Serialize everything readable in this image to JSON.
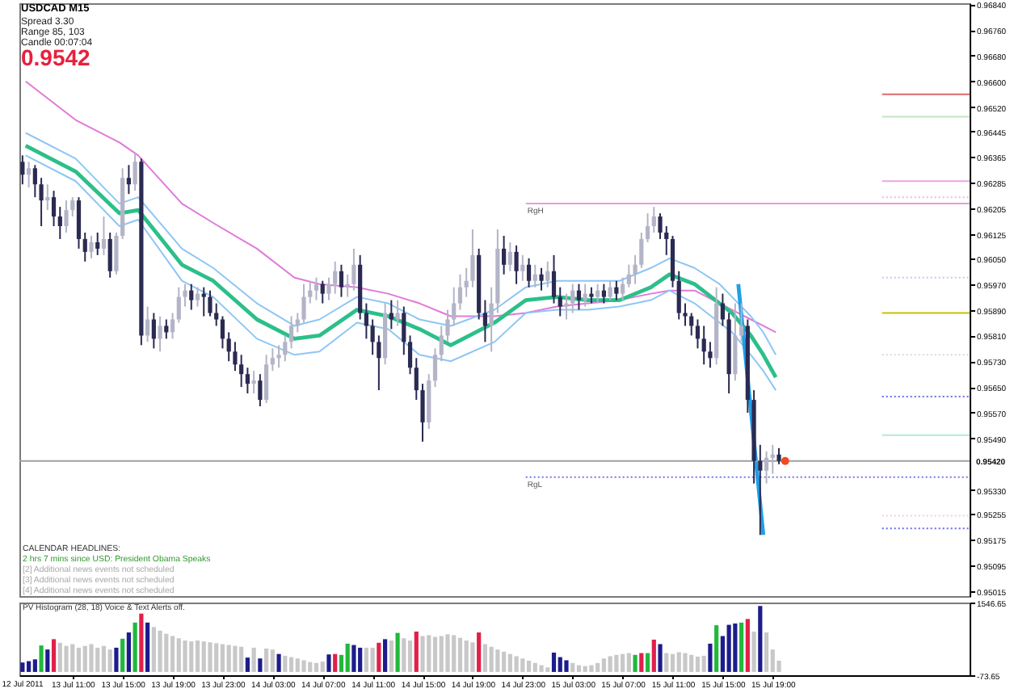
{
  "chart_data": [
    {
      "type": "candlestick",
      "tick_labels": "y",
      "x": [
        "2011-07-13T07:00",
        "2011-07-13T07:30",
        "2011-07-13T08:00",
        "2011-07-13T08:30",
        "2011-07-13T09:00",
        "2011-07-13T09:30",
        "2011-07-13T10:00",
        "2011-07-13T10:30",
        "2011-07-13T11:00",
        "2011-07-13T11:30",
        "2011-07-13T12:00",
        "2011-07-13T12:30",
        "2011-07-13T13:00",
        "2011-07-13T13:30",
        "2011-07-13T14:00",
        "2011-07-13T14:30",
        "2011-07-13T15:00",
        "2011-07-13T15:30",
        "2011-07-13T16:00",
        "2011-07-13T16:30",
        "2011-07-13T17:00",
        "2011-07-13T17:30",
        "2011-07-13T18:00",
        "2011-07-13T18:30",
        "2011-07-13T19:00",
        "2011-07-13T19:30",
        "2011-07-13T20:00",
        "2011-07-13T20:30",
        "2011-07-13T21:00",
        "2011-07-13T21:30",
        "2011-07-13T22:00",
        "2011-07-13T22:30",
        "2011-07-13T23:00",
        "2011-07-13T23:30",
        "2011-07-14T00:00",
        "2011-07-14T00:30",
        "2011-07-14T01:00",
        "2011-07-14T01:30",
        "2011-07-14T02:00",
        "2011-07-14T02:30",
        "2011-07-14T03:00",
        "2011-07-14T03:30",
        "2011-07-14T04:00",
        "2011-07-14T04:30",
        "2011-07-14T05:00",
        "2011-07-14T05:30",
        "2011-07-14T06:00",
        "2011-07-14T06:30",
        "2011-07-14T07:00",
        "2011-07-14T07:30",
        "2011-07-14T08:00",
        "2011-07-14T08:30",
        "2011-07-14T09:00",
        "2011-07-14T09:30",
        "2011-07-14T10:00",
        "2011-07-14T10:30",
        "2011-07-14T11:00",
        "2011-07-14T11:30",
        "2011-07-14T12:00",
        "2011-07-14T12:30",
        "2011-07-14T13:00",
        "2011-07-14T13:30",
        "2011-07-14T14:00",
        "2011-07-14T14:30",
        "2011-07-14T15:00",
        "2011-07-14T15:30",
        "2011-07-14T16:00",
        "2011-07-14T16:30",
        "2011-07-14T17:00",
        "2011-07-14T17:30",
        "2011-07-14T18:00",
        "2011-07-14T18:30",
        "2011-07-14T19:00",
        "2011-07-14T19:30",
        "2011-07-14T20:00",
        "2011-07-14T20:30",
        "2011-07-14T21:00",
        "2011-07-14T21:30",
        "2011-07-14T22:00",
        "2011-07-14T22:30",
        "2011-07-14T23:00",
        "2011-07-14T23:30",
        "2011-07-15T00:00",
        "2011-07-15T00:30",
        "2011-07-15T01:00",
        "2011-07-15T01:30",
        "2011-07-15T02:00",
        "2011-07-15T02:30",
        "2011-07-15T03:00",
        "2011-07-15T03:30",
        "2011-07-15T04:00",
        "2011-07-15T04:30",
        "2011-07-15T05:00",
        "2011-07-15T05:30",
        "2011-07-15T06:00",
        "2011-07-15T06:30",
        "2011-07-15T07:00",
        "2011-07-15T07:30",
        "2011-07-15T08:00",
        "2011-07-15T08:30",
        "2011-07-15T09:00",
        "2011-07-15T09:30",
        "2011-07-15T10:00",
        "2011-07-15T10:30",
        "2011-07-15T11:00",
        "2011-07-15T11:30",
        "2011-07-15T12:00",
        "2011-07-15T12:30",
        "2011-07-15T13:00",
        "2011-07-15T13:30",
        "2011-07-15T14:00",
        "2011-07-15T14:30",
        "2011-07-15T15:00",
        "2011-07-15T15:30",
        "2011-07-15T16:00",
        "2011-07-15T16:30",
        "2011-07-15T17:00",
        "2011-07-15T17:30",
        "2011-07-15T18:00",
        "2011-07-15T18:30",
        "2011-07-15T19:00",
        "2011-07-15T19:30"
      ],
      "ohlc": [
        [
          0.9635,
          0.9637,
          0.9628,
          0.9631
        ],
        [
          0.9631,
          0.9635,
          0.9627,
          0.9633
        ],
        [
          0.9633,
          0.9634,
          0.9624,
          0.9628
        ],
        [
          0.9628,
          0.963,
          0.9615,
          0.9623
        ],
        [
          0.9623,
          0.9628,
          0.962,
          0.9624
        ],
        [
          0.9624,
          0.9626,
          0.9615,
          0.9618
        ],
        [
          0.9618,
          0.9621,
          0.9611,
          0.9615
        ],
        [
          0.9615,
          0.9623,
          0.9613,
          0.962
        ],
        [
          0.962,
          0.9624,
          0.9618,
          0.9623
        ],
        [
          0.9623,
          0.9624,
          0.9608,
          0.9611
        ],
        [
          0.9611,
          0.9613,
          0.9604,
          0.9607
        ],
        [
          0.9607,
          0.9612,
          0.9605,
          0.961
        ],
        [
          0.961,
          0.9613,
          0.9606,
          0.9608
        ],
        [
          0.9608,
          0.9618,
          0.9606,
          0.9611
        ],
        [
          0.9611,
          0.9613,
          0.9599,
          0.9601
        ],
        [
          0.9601,
          0.9613,
          0.96,
          0.9612
        ],
        [
          0.9612,
          0.9633,
          0.9611,
          0.963
        ],
        [
          0.963,
          0.9634,
          0.9625,
          0.9628
        ],
        [
          0.9628,
          0.9638,
          0.9626,
          0.9635
        ],
        [
          0.9635,
          0.9636,
          0.9578,
          0.9581
        ],
        [
          0.9581,
          0.959,
          0.9579,
          0.9586
        ],
        [
          0.9586,
          0.9588,
          0.9577,
          0.958
        ],
        [
          0.958,
          0.9587,
          0.9576,
          0.9584
        ],
        [
          0.9584,
          0.9586,
          0.958,
          0.9582
        ],
        [
          0.9582,
          0.9588,
          0.958,
          0.9586
        ],
        [
          0.9586,
          0.9596,
          0.9585,
          0.9593
        ],
        [
          0.9593,
          0.9597,
          0.959,
          0.9595
        ],
        [
          0.9595,
          0.9597,
          0.9589,
          0.9592
        ],
        [
          0.9592,
          0.9596,
          0.959,
          0.9594
        ],
        [
          0.9594,
          0.9596,
          0.9587,
          0.9593
        ],
        [
          0.9593,
          0.9595,
          0.9587,
          0.9588
        ],
        [
          0.9588,
          0.9591,
          0.9584,
          0.9586
        ],
        [
          0.9586,
          0.9587,
          0.9577,
          0.958
        ],
        [
          0.958,
          0.9582,
          0.9573,
          0.9576
        ],
        [
          0.9576,
          0.9579,
          0.957,
          0.9572
        ],
        [
          0.9572,
          0.9575,
          0.9565,
          0.9569
        ],
        [
          0.9569,
          0.9571,
          0.9563,
          0.9566
        ],
        [
          0.9566,
          0.957,
          0.9563,
          0.9567
        ],
        [
          0.9567,
          0.9569,
          0.9559,
          0.9561
        ],
        [
          0.9561,
          0.9575,
          0.956,
          0.9572
        ],
        [
          0.9572,
          0.9577,
          0.957,
          0.9574
        ],
        [
          0.9574,
          0.9578,
          0.9571,
          0.9575
        ],
        [
          0.9575,
          0.9581,
          0.9573,
          0.9579
        ],
        [
          0.9579,
          0.9587,
          0.9577,
          0.9584
        ],
        [
          0.9584,
          0.9588,
          0.9582,
          0.9586
        ],
        [
          0.9586,
          0.9597,
          0.9585,
          0.9593
        ],
        [
          0.9593,
          0.9598,
          0.9591,
          0.9595
        ],
        [
          0.9595,
          0.9599,
          0.9592,
          0.9597
        ],
        [
          0.9597,
          0.9598,
          0.9591,
          0.9594
        ],
        [
          0.9594,
          0.9599,
          0.9592,
          0.9597
        ],
        [
          0.9597,
          0.9604,
          0.9594,
          0.9601
        ],
        [
          0.9601,
          0.9603,
          0.9593,
          0.9596
        ],
        [
          0.9596,
          0.96,
          0.9593,
          0.9597
        ],
        [
          0.9597,
          0.9608,
          0.9595,
          0.9603
        ],
        [
          0.9603,
          0.9606,
          0.9586,
          0.9588
        ],
        [
          0.9588,
          0.9591,
          0.958,
          0.9584
        ],
        [
          0.9584,
          0.9586,
          0.9575,
          0.9579
        ],
        [
          0.9579,
          0.9581,
          0.9564,
          0.9574
        ],
        [
          0.9574,
          0.9591,
          0.9572,
          0.9588
        ],
        [
          0.9588,
          0.9592,
          0.9583,
          0.9586
        ],
        [
          0.9586,
          0.9592,
          0.9584,
          0.9588
        ],
        [
          0.9588,
          0.959,
          0.9575,
          0.9579
        ],
        [
          0.9579,
          0.9581,
          0.9569,
          0.9571
        ],
        [
          0.9571,
          0.9574,
          0.9561,
          0.9564
        ],
        [
          0.9564,
          0.9566,
          0.9548,
          0.9554
        ],
        [
          0.9554,
          0.9569,
          0.9552,
          0.9567
        ],
        [
          0.9567,
          0.9577,
          0.9565,
          0.9575
        ],
        [
          0.9575,
          0.9584,
          0.9573,
          0.9581
        ],
        [
          0.9581,
          0.9589,
          0.9579,
          0.9586
        ],
        [
          0.9586,
          0.9596,
          0.9584,
          0.9591
        ],
        [
          0.9591,
          0.96,
          0.9589,
          0.9596
        ],
        [
          0.9596,
          0.9602,
          0.9593,
          0.9598
        ],
        [
          0.9598,
          0.9614,
          0.9596,
          0.9606
        ],
        [
          0.9606,
          0.9608,
          0.9586,
          0.9588
        ],
        [
          0.9588,
          0.9592,
          0.9579,
          0.9584
        ],
        [
          0.9584,
          0.9596,
          0.9576,
          0.9591
        ],
        [
          0.9591,
          0.9614,
          0.9588,
          0.9608
        ],
        [
          0.9608,
          0.9612,
          0.96,
          0.9603
        ],
        [
          0.9603,
          0.961,
          0.9601,
          0.9607
        ],
        [
          0.9607,
          0.9609,
          0.9597,
          0.9601
        ],
        [
          0.9601,
          0.9606,
          0.9598,
          0.9603
        ],
        [
          0.9603,
          0.9605,
          0.9596,
          0.9598
        ],
        [
          0.9598,
          0.9603,
          0.9596,
          0.96
        ],
        [
          0.96,
          0.9602,
          0.9595,
          0.9598
        ],
        [
          0.9598,
          0.9604,
          0.9596,
          0.9601
        ],
        [
          0.9601,
          0.9606,
          0.9591,
          0.9593
        ],
        [
          0.9593,
          0.9596,
          0.9587,
          0.959
        ],
        [
          0.959,
          0.9594,
          0.9586,
          0.9591
        ],
        [
          0.9591,
          0.9597,
          0.9588,
          0.9595
        ],
        [
          0.9595,
          0.9597,
          0.9589,
          0.9592
        ],
        [
          0.9592,
          0.9597,
          0.959,
          0.9594
        ],
        [
          0.9594,
          0.9596,
          0.9591,
          0.9593
        ],
        [
          0.9593,
          0.9597,
          0.9591,
          0.9595
        ],
        [
          0.9595,
          0.9597,
          0.9591,
          0.9593
        ],
        [
          0.9593,
          0.9598,
          0.9592,
          0.9596
        ],
        [
          0.9596,
          0.9598,
          0.9592,
          0.9594
        ],
        [
          0.9594,
          0.9599,
          0.9592,
          0.9597
        ],
        [
          0.9597,
          0.9603,
          0.9596,
          0.96
        ],
        [
          0.96,
          0.9606,
          0.9597,
          0.9603
        ],
        [
          0.9603,
          0.9613,
          0.9602,
          0.9611
        ],
        [
          0.9611,
          0.9619,
          0.961,
          0.9615
        ],
        [
          0.9615,
          0.9621,
          0.9613,
          0.9618
        ],
        [
          0.9618,
          0.9619,
          0.9611,
          0.9613
        ],
        [
          0.9613,
          0.9615,
          0.9606,
          0.9611
        ],
        [
          0.9611,
          0.9612,
          0.9596,
          0.9598
        ],
        [
          0.9598,
          0.9601,
          0.9586,
          0.9588
        ],
        [
          0.9588,
          0.9591,
          0.9584,
          0.9587
        ],
        [
          0.9587,
          0.9588,
          0.9581,
          0.9584
        ],
        [
          0.9584,
          0.9586,
          0.9577,
          0.958
        ],
        [
          0.958,
          0.9584,
          0.9572,
          0.9576
        ],
        [
          0.9576,
          0.9579,
          0.9571,
          0.9574
        ],
        [
          0.9574,
          0.9596,
          0.9572,
          0.9591
        ],
        [
          0.9591,
          0.9594,
          0.9584,
          0.9586
        ],
        [
          0.9586,
          0.9588,
          0.9563,
          0.9569
        ],
        [
          0.9569,
          0.9591,
          0.9567,
          0.9581
        ],
        [
          0.9581,
          0.9591,
          0.9579,
          0.9584
        ],
        [
          0.9584,
          0.9586,
          0.9557,
          0.9561
        ],
        [
          0.9561,
          0.9564,
          0.9535,
          0.9542
        ],
        [
          0.9542,
          0.9547,
          0.9519,
          0.9539
        ],
        [
          0.9539,
          0.9545,
          0.9535,
          0.9543
        ],
        [
          0.9543,
          0.9547,
          0.9538,
          0.9544
        ],
        [
          0.9544,
          0.9546,
          0.9541,
          0.9542
        ]
      ],
      "colors": [
        "#2a2a52",
        "#b4b4c8",
        "#2a2a52",
        "#2a2a52",
        "#b4b4c8",
        "#2a2a52",
        "#2a2a52",
        "#b4b4c8",
        "#b4b4c8",
        "#2a2a52",
        "#2a2a52",
        "#b4b4c8",
        "#2a2a52",
        "#b4b4c8",
        "#2a2a52",
        "#b4b4c8",
        "#b4b4c8",
        "#2a2a52",
        "#b4b4c8",
        "#2a2a52",
        "#b4b4c8",
        "#2a2a52",
        "#b4b4c8",
        "#2a2a52",
        "#b4b4c8",
        "#b4b4c8",
        "#b4b4c8",
        "#2a2a52",
        "#b4b4c8",
        "#2a2a52",
        "#2a2a52",
        "#2a2a52",
        "#2a2a52",
        "#2a2a52",
        "#2a2a52",
        "#2a2a52",
        "#2a2a52",
        "#b4b4c8",
        "#2a2a52",
        "#b4b4c8",
        "#b4b4c8",
        "#b4b4c8",
        "#b4b4c8",
        "#b4b4c8",
        "#b4b4c8",
        "#b4b4c8",
        "#b4b4c8",
        "#b4b4c8",
        "#2a2a52",
        "#b4b4c8",
        "#b4b4c8",
        "#2a2a52",
        "#b4b4c8",
        "#b4b4c8",
        "#2a2a52",
        "#2a2a52",
        "#2a2a52",
        "#2a2a52",
        "#b4b4c8",
        "#2a2a52",
        "#b4b4c8",
        "#2a2a52",
        "#2a2a52",
        "#2a2a52",
        "#2a2a52",
        "#b4b4c8",
        "#b4b4c8",
        "#b4b4c8",
        "#b4b4c8",
        "#b4b4c8",
        "#b4b4c8",
        "#b4b4c8",
        "#b4b4c8",
        "#2a2a52",
        "#2a2a52",
        "#b4b4c8",
        "#b4b4c8",
        "#2a2a52",
        "#b4b4c8",
        "#2a2a52",
        "#b4b4c8",
        "#2a2a52",
        "#b4b4c8",
        "#2a2a52",
        "#b4b4c8",
        "#2a2a52",
        "#2a2a52",
        "#b4b4c8",
        "#b4b4c8",
        "#2a2a52",
        "#b4b4c8",
        "#2a2a52",
        "#b4b4c8",
        "#2a2a52",
        "#b4b4c8",
        "#2a2a52",
        "#b4b4c8",
        "#b4b4c8",
        "#b4b4c8",
        "#b4b4c8",
        "#b4b4c8",
        "#b4b4c8",
        "#2a2a52",
        "#2a2a52",
        "#2a2a52",
        "#2a2a52",
        "#2a2a52",
        "#2a2a52",
        "#2a2a52",
        "#2a2a52",
        "#2a2a52",
        "#b4b4c8",
        "#2a2a52",
        "#2a2a52",
        "#b4b4c8",
        "#b4b4c8",
        "#2a2a52",
        "#2a2a52",
        "#2a2a52",
        "#b4b4c8",
        "#b4b4c8",
        "#2a2a52"
      ],
      "xlim": [
        "2011-07-13T06:45",
        "2011-07-16T10:45"
      ],
      "ylim": [
        0.95,
        0.96843
      ],
      "yticks": [
        {
          "value": 0.9684,
          "label": "0.96840"
        },
        {
          "value": 0.9676,
          "label": "0.96760"
        },
        {
          "value": 0.9668,
          "label": "0.96680"
        },
        {
          "value": 0.966,
          "label": "0.96600"
        },
        {
          "value": 0.9652,
          "label": "0.96520"
        },
        0.96445,
        0.96365,
        0.96285,
        0.96205,
        0.96125,
        {
          "value": 0.9605,
          "label": "0.96050"
        },
        {
          "value": 0.9597,
          "label": "0.95970"
        },
        {
          "value": 0.9589,
          "label": "0.95890"
        },
        {
          "value": 0.9581,
          "label": "0.95810"
        },
        {
          "value": 0.9573,
          "label": "0.95730"
        },
        {
          "value": 0.9565,
          "label": "0.95650"
        },
        {
          "value": 0.9557,
          "label": "0.95570"
        },
        {
          "value": 0.9549,
          "label": "0.95490"
        },
        {
          "value": 0.9533,
          "label": "0.95330"
        },
        0.95255,
        0.95175,
        0.95095,
        0.95015
      ],
      "series": [
        {
          "type": "line",
          "color": "#e07ad8",
          "x": [
            "2011-07-13T07:15",
            "2011-07-13T11:15",
            "2011-07-13T14:45",
            "2011-07-13T16:15",
            "2011-07-13T19:45",
            "2011-07-13T22:15",
            "2011-07-14T01:45",
            "2011-07-14T04:45",
            "2011-07-14T06:45",
            "2011-07-14T09:45",
            "2011-07-14T12:15",
            "2011-07-14T14:45",
            "2011-07-14T17:15",
            "2011-07-14T20:45",
            "2011-07-14T23:15",
            "2011-07-15T01:45",
            "2011-07-15T04:15",
            "2011-07-15T06:45",
            "2011-07-15T09:15",
            "2011-07-15T10:45",
            "2011-07-15T12:45",
            "2011-07-15T14:45",
            "2011-07-15T15:45",
            "2011-07-15T17:15",
            "2011-07-15T18:15",
            "2011-07-15T19:15"
          ],
          "values": [
            0.966,
            0.9648,
            0.9641,
            0.9637,
            0.9622,
            0.9616,
            0.9608,
            0.9599,
            0.9597,
            0.9596,
            0.9594,
            0.9591,
            0.9587,
            0.9587,
            0.9588,
            0.959,
            0.9591,
            0.9592,
            0.9594,
            0.9595,
            0.9595,
            0.9591,
            0.9589,
            0.9586,
            0.9584,
            0.9582
          ]
        },
        {
          "type": "line",
          "color": "#8ec6f4",
          "x": [
            "2011-07-13T07:15",
            "2011-07-13T11:15",
            "2011-07-13T14:45",
            "2011-07-13T16:15",
            "2011-07-13T19:45",
            "2011-07-13T22:15",
            "2011-07-14T01:45",
            "2011-07-14T04:45",
            "2011-07-14T06:45",
            "2011-07-14T09:45",
            "2011-07-14T12:15",
            "2011-07-14T14:45",
            "2011-07-14T17:15",
            "2011-07-14T20:45",
            "2011-07-14T23:15",
            "2011-07-15T01:45",
            "2011-07-15T04:15",
            "2011-07-15T06:45",
            "2011-07-15T09:15",
            "2011-07-15T10:45",
            "2011-07-15T12:45",
            "2011-07-15T14:45",
            "2011-07-15T15:45",
            "2011-07-15T17:15",
            "2011-07-15T18:15",
            "2011-07-15T19:15"
          ],
          "values": [
            0.9644,
            0.9636,
            0.9622,
            0.9624,
            0.9608,
            0.9602,
            0.9591,
            0.9584,
            0.9586,
            0.9593,
            0.9591,
            0.9586,
            0.9584,
            0.9589,
            0.9596,
            0.9598,
            0.9598,
            0.9598,
            0.9602,
            0.9605,
            0.9602,
            0.9597,
            0.9593,
            0.9587,
            0.9582,
            0.9575
          ]
        },
        {
          "type": "line",
          "color": "#8ec6f4",
          "x": [
            "2011-07-13T07:15",
            "2011-07-13T11:15",
            "2011-07-13T14:45",
            "2011-07-13T16:15",
            "2011-07-13T19:45",
            "2011-07-13T22:15",
            "2011-07-14T01:45",
            "2011-07-14T04:45",
            "2011-07-14T06:45",
            "2011-07-14T09:45",
            "2011-07-14T12:15",
            "2011-07-14T14:45",
            "2011-07-14T17:15",
            "2011-07-14T20:45",
            "2011-07-14T23:15",
            "2011-07-15T01:45",
            "2011-07-15T04:15",
            "2011-07-15T06:45",
            "2011-07-15T09:15",
            "2011-07-15T10:45",
            "2011-07-15T12:45",
            "2011-07-15T14:45",
            "2011-07-15T15:45",
            "2011-07-15T17:15",
            "2011-07-15T18:15",
            "2011-07-15T19:15"
          ],
          "values": [
            0.9637,
            0.9629,
            0.9615,
            0.9617,
            0.9598,
            0.9593,
            0.958,
            0.9575,
            0.9576,
            0.9585,
            0.9583,
            0.9575,
            0.9573,
            0.9579,
            0.9588,
            0.9589,
            0.9589,
            0.959,
            0.9592,
            0.9595,
            0.9591,
            0.9585,
            0.9582,
            0.9575,
            0.957,
            0.9564
          ]
        },
        {
          "type": "line",
          "color": "#2cbf8a",
          "x": [
            "2011-07-13T07:15",
            "2011-07-13T11:15",
            "2011-07-13T14:45",
            "2011-07-13T16:15",
            "2011-07-13T19:45",
            "2011-07-13T22:15",
            "2011-07-14T01:45",
            "2011-07-14T04:45",
            "2011-07-14T06:45",
            "2011-07-14T09:45",
            "2011-07-14T12:15",
            "2011-07-14T14:45",
            "2011-07-14T17:15",
            "2011-07-14T20:45",
            "2011-07-14T23:15",
            "2011-07-15T01:45",
            "2011-07-15T04:15",
            "2011-07-15T06:45",
            "2011-07-15T09:15",
            "2011-07-15T10:45",
            "2011-07-15T12:45",
            "2011-07-15T14:45",
            "2011-07-15T15:45",
            "2011-07-15T17:15",
            "2011-07-15T18:15",
            "2011-07-15T19:15"
          ],
          "values": [
            0.964,
            0.9632,
            0.9619,
            0.962,
            0.9603,
            0.9598,
            0.9586,
            0.958,
            0.9581,
            0.9589,
            0.9587,
            0.9583,
            0.9578,
            0.9585,
            0.9592,
            0.9593,
            0.9592,
            0.9592,
            0.9596,
            0.96,
            0.9597,
            0.9591,
            0.9588,
            0.9581,
            0.9575,
            0.9568
          ]
        },
        {
          "type": "line",
          "color": "#1f9fe8",
          "x": [
            "2011-07-15T16:15",
            "2011-07-15T18:15"
          ],
          "values": [
            0.9597,
            0.9519
          ]
        },
        {
          "type": "line",
          "name": "RgH",
          "color": "#e89ae0",
          "x": [
            "2011-07-14T23:15",
            "2011-07-16T10:45"
          ],
          "values": [
            0.9622,
            0.9622
          ]
        },
        {
          "type": "line",
          "name": "RgL",
          "color": "#7474ec",
          "line_style": "dotted",
          "x": [
            "2011-07-14T23:15",
            "2011-07-16T10:45"
          ],
          "values": [
            0.9537,
            0.9537
          ]
        },
        {
          "type": "line",
          "color": "#e06a6a",
          "x": [
            "2011-07-16T03:45",
            "2011-07-16T10:45"
          ],
          "values": [
            0.9656,
            0.9656
          ]
        },
        {
          "type": "line",
          "color": "#c4e4c4",
          "x": [
            "2011-07-16T03:45",
            "2011-07-16T10:45"
          ],
          "values": [
            0.9649,
            0.9649
          ]
        },
        {
          "type": "line",
          "color": "#eea4e6",
          "x": [
            "2011-07-16T03:45",
            "2011-07-16T10:45"
          ],
          "values": [
            0.9629,
            0.9629
          ]
        },
        {
          "type": "line",
          "color": "#eeb4e8",
          "line_style": "dotted",
          "x": [
            "2011-07-16T03:45",
            "2011-07-16T10:45"
          ],
          "values": [
            0.9624,
            0.9624
          ]
        },
        {
          "type": "line",
          "color": "#c6c6f2",
          "line_style": "dotted",
          "x": [
            "2011-07-16T03:45",
            "2011-07-16T10:45"
          ],
          "values": [
            0.9599,
            0.9599
          ]
        },
        {
          "type": "line",
          "color": "#c8c000",
          "x": [
            "2011-07-16T03:45",
            "2011-07-16T10:45"
          ],
          "values": [
            0.9588,
            0.9588
          ]
        },
        {
          "type": "line",
          "color": "#e4d4d4",
          "line_style": "dotted",
          "x": [
            "2011-07-16T03:45",
            "2011-07-16T10:45"
          ],
          "values": [
            0.9575,
            0.9575
          ]
        },
        {
          "type": "line",
          "color": "#6a6ae8",
          "line_style": "dotted",
          "x": [
            "2011-07-16T03:45",
            "2011-07-16T10:45"
          ],
          "values": [
            0.9562,
            0.9562
          ]
        },
        {
          "type": "line",
          "color": "#b4e6de",
          "x": [
            "2011-07-16T03:45",
            "2011-07-16T10:45"
          ],
          "values": [
            0.955,
            0.955
          ]
        },
        {
          "type": "line",
          "color": "#f0d0d0",
          "line_style": "dotted",
          "x": [
            "2011-07-16T03:45",
            "2011-07-16T10:45"
          ],
          "values": [
            0.9525,
            0.9525
          ]
        },
        {
          "type": "line",
          "color": "#6a6ae8",
          "line_style": "dotted",
          "x": [
            "2011-07-16T03:45",
            "2011-07-16T10:45"
          ],
          "values": [
            0.9521,
            0.9521
          ]
        },
        {
          "type": "scatter",
          "color": "#f04a1e",
          "marker": "circle",
          "x": [
            "2011-07-15T20:00"
          ],
          "values": [
            0.9542
          ]
        }
      ],
      "ref_lines": [
        {
          "axis": "y",
          "value": 0.9542,
          "label": "0.95420",
          "color": "#a0a0a0"
        }
      ],
      "annotations": [
        "USDCAD M15",
        "Spread 3.30",
        "Range 85, 103",
        "Candle 00:07:04",
        "0.9542",
        "CALENDAR HEADLINES:",
        "2 hrs 7 mins since USD: President Obama Speaks",
        "[2] Additional news events not scheduled",
        "[3] Additional news events not scheduled",
        "[4] Additional news events not scheduled"
      ]
    },
    {
      "type": "bar",
      "title": "PV Histogram (28, 18) Voice & Text Alerts off.",
      "x": [
        "2011-07-13T07:00",
        "2011-07-13T07:30",
        "2011-07-13T08:00",
        "2011-07-13T08:30",
        "2011-07-13T09:00",
        "2011-07-13T09:30",
        "2011-07-13T10:00",
        "2011-07-13T10:30",
        "2011-07-13T11:00",
        "2011-07-13T11:30",
        "2011-07-13T12:00",
        "2011-07-13T12:30",
        "2011-07-13T13:00",
        "2011-07-13T13:30",
        "2011-07-13T14:00",
        "2011-07-13T14:30",
        "2011-07-13T15:00",
        "2011-07-13T15:30",
        "2011-07-13T16:00",
        "2011-07-13T16:30",
        "2011-07-13T17:00",
        "2011-07-13T17:30",
        "2011-07-13T18:00",
        "2011-07-13T18:30",
        "2011-07-13T19:00",
        "2011-07-13T19:30",
        "2011-07-13T20:00",
        "2011-07-13T20:30",
        "2011-07-13T21:00",
        "2011-07-13T21:30",
        "2011-07-13T22:00",
        "2011-07-13T22:30",
        "2011-07-13T23:00",
        "2011-07-13T23:30",
        "2011-07-14T00:00",
        "2011-07-14T00:30",
        "2011-07-14T01:00",
        "2011-07-14T01:30",
        "2011-07-14T02:00",
        "2011-07-14T02:30",
        "2011-07-14T03:00",
        "2011-07-14T03:30",
        "2011-07-14T04:00",
        "2011-07-14T04:30",
        "2011-07-14T05:00",
        "2011-07-14T05:30",
        "2011-07-14T06:00",
        "2011-07-14T06:30",
        "2011-07-14T07:00",
        "2011-07-14T07:30",
        "2011-07-14T08:00",
        "2011-07-14T08:30",
        "2011-07-14T09:00",
        "2011-07-14T09:30",
        "2011-07-14T10:00",
        "2011-07-14T10:30",
        "2011-07-14T11:00",
        "2011-07-14T11:30",
        "2011-07-14T12:00",
        "2011-07-14T12:30",
        "2011-07-14T13:00",
        "2011-07-14T13:30",
        "2011-07-14T14:00",
        "2011-07-14T14:30",
        "2011-07-14T15:00",
        "2011-07-14T15:30",
        "2011-07-14T16:00",
        "2011-07-14T16:30",
        "2011-07-14T17:00",
        "2011-07-14T17:30",
        "2011-07-14T18:00",
        "2011-07-14T18:30",
        "2011-07-14T19:00",
        "2011-07-14T19:30",
        "2011-07-14T20:00",
        "2011-07-14T20:30",
        "2011-07-14T21:00",
        "2011-07-14T21:30",
        "2011-07-14T22:00",
        "2011-07-14T22:30",
        "2011-07-14T23:00",
        "2011-07-14T23:30",
        "2011-07-15T00:00",
        "2011-07-15T00:30",
        "2011-07-15T01:00",
        "2011-07-15T01:30",
        "2011-07-15T02:00",
        "2011-07-15T02:30",
        "2011-07-15T03:00",
        "2011-07-15T03:30",
        "2011-07-15T04:00",
        "2011-07-15T04:30",
        "2011-07-15T05:00",
        "2011-07-15T05:30",
        "2011-07-15T06:00",
        "2011-07-15T06:30",
        "2011-07-15T07:00",
        "2011-07-15T07:30",
        "2011-07-15T08:00",
        "2011-07-15T08:30",
        "2011-07-15T09:00",
        "2011-07-15T09:30",
        "2011-07-15T10:00",
        "2011-07-15T10:30",
        "2011-07-15T11:00",
        "2011-07-15T11:30",
        "2011-07-15T12:00",
        "2011-07-15T12:30",
        "2011-07-15T13:00",
        "2011-07-15T13:30",
        "2011-07-15T14:00",
        "2011-07-15T14:30",
        "2011-07-15T15:00",
        "2011-07-15T15:30",
        "2011-07-15T16:00",
        "2011-07-15T16:30",
        "2011-07-15T17:00",
        "2011-07-15T17:30",
        "2011-07-15T18:00",
        "2011-07-15T18:30",
        "2011-07-15T19:00",
        "2011-07-15T19:30"
      ],
      "values": [
        210,
        240,
        280,
        590,
        500,
        730,
        650,
        580,
        620,
        540,
        580,
        620,
        540,
        580,
        500,
        540,
        740,
        880,
        1100,
        1300,
        1100,
        1000,
        920,
        850,
        800,
        750,
        700,
        680,
        700,
        680,
        660,
        640,
        620,
        600,
        580,
        560,
        320,
        540,
        300,
        520,
        500,
        400,
        360,
        330,
        300,
        260,
        220,
        200,
        230,
        390,
        400,
        380,
        630,
        600,
        540,
        540,
        540,
        650,
        730,
        700,
        870,
        750,
        700,
        900,
        800,
        820,
        780,
        800,
        840,
        820,
        760,
        700,
        660,
        880,
        620,
        560,
        500,
        450,
        400,
        350,
        300,
        250,
        200,
        150,
        100,
        430,
        330,
        260,
        200,
        150,
        130,
        150,
        200,
        300,
        350,
        380,
        400,
        420,
        380,
        420,
        420,
        720,
        620,
        420,
        400,
        440,
        420,
        380,
        340,
        360,
        630,
        1040,
        800,
        1050,
        1080,
        1100,
        1180,
        900,
        1470,
        880,
        500,
        250
      ],
      "colors": [
        "#1c1c8c",
        "#1c1c8c",
        "#1c1c8c",
        "#22b83c",
        "#1c1c8c",
        "#e0204a",
        "#c8c8c8",
        "#c8c8c8",
        "#c8c8c8",
        "#c8c8c8",
        "#c8c8c8",
        "#c8c8c8",
        "#c8c8c8",
        "#c8c8c8",
        "#c8c8c8",
        "#1c1c8c",
        "#22b83c",
        "#1c1c8c",
        "#22b83c",
        "#e0204a",
        "#1c1c8c",
        "#c8c8c8",
        "#c8c8c8",
        "#c8c8c8",
        "#c8c8c8",
        "#c8c8c8",
        "#c8c8c8",
        "#c8c8c8",
        "#c8c8c8",
        "#c8c8c8",
        "#c8c8c8",
        "#c8c8c8",
        "#c8c8c8",
        "#c8c8c8",
        "#c8c8c8",
        "#c8c8c8",
        "#1c1c8c",
        "#c8c8c8",
        "#1c1c8c",
        "#c8c8c8",
        "#c8c8c8",
        "#1c1c8c",
        "#c8c8c8",
        "#c8c8c8",
        "#c8c8c8",
        "#c8c8c8",
        "#c8c8c8",
        "#c8c8c8",
        "#c8c8c8",
        "#1c1c8c",
        "#e0204a",
        "#22b83c",
        "#22b83c",
        "#1c1c8c",
        "#1c1c8c",
        "#c8c8c8",
        "#c8c8c8",
        "#e0204a",
        "#1c1c8c",
        "#c8c8c8",
        "#22b83c",
        "#c8c8c8",
        "#c8c8c8",
        "#e0204a",
        "#c8c8c8",
        "#c8c8c8",
        "#c8c8c8",
        "#c8c8c8",
        "#c8c8c8",
        "#c8c8c8",
        "#c8c8c8",
        "#c8c8c8",
        "#c8c8c8",
        "#e0204a",
        "#c8c8c8",
        "#c8c8c8",
        "#c8c8c8",
        "#c8c8c8",
        "#c8c8c8",
        "#c8c8c8",
        "#c8c8c8",
        "#c8c8c8",
        "#c8c8c8",
        "#c8c8c8",
        "#c8c8c8",
        "#1c1c8c",
        "#1c1c8c",
        "#1c1c8c",
        "#c8c8c8",
        "#c8c8c8",
        "#c8c8c8",
        "#c8c8c8",
        "#c8c8c8",
        "#c8c8c8",
        "#c8c8c8",
        "#c8c8c8",
        "#c8c8c8",
        "#c8c8c8",
        "#22b83c",
        "#e0204a",
        "#22b83c",
        "#e0204a",
        "#1c1c8c",
        "#c8c8c8",
        "#c8c8c8",
        "#c8c8c8",
        "#c8c8c8",
        "#c8c8c8",
        "#c8c8c8",
        "#c8c8c8",
        "#1c1c8c",
        "#22b83c",
        "#1c1c8c",
        "#1c1c8c",
        "#1c1c8c",
        "#22b83c",
        "#e0204a",
        "#c8c8c8",
        "#1c1c8c",
        "#c8c8c8",
        "#c8c8c8",
        "#c8c8c8"
      ],
      "xlim": [
        "2011-07-13T06:45",
        "2011-07-16T10:45"
      ],
      "ylim": [
        -73.65,
        1546.65
      ],
      "yticks": [
        1546.65,
        -73.65
      ],
      "xticks": [
        {
          "value": "2011-07-13T11:00",
          "label": "13 Jul 11:00"
        },
        {
          "value": "2011-07-13T15:00",
          "label": "13 Jul 15:00"
        },
        {
          "value": "2011-07-13T19:00",
          "label": "13 Jul 19:00"
        },
        {
          "value": "2011-07-13T23:00",
          "label": "13 Jul 23:00"
        },
        {
          "value": "2011-07-14T03:00",
          "label": "14 Jul 03:00"
        },
        {
          "value": "2011-07-14T07:00",
          "label": "14 Jul 07:00"
        },
        {
          "value": "2011-07-14T11:00",
          "label": "14 Jul 11:00"
        },
        {
          "value": "2011-07-14T15:00",
          "label": "14 Jul 15:00"
        },
        {
          "value": "2011-07-14T19:00",
          "label": "14 Jul 19:00"
        },
        {
          "value": "2011-07-14T23:00",
          "label": "14 Jul 23:00"
        },
        {
          "value": "2011-07-15T03:00",
          "label": "15 Jul 03:00"
        },
        {
          "value": "2011-07-15T07:00",
          "label": "15 Jul 07:00"
        },
        {
          "value": "2011-07-15T11:00",
          "label": "15 Jul 11:00"
        },
        {
          "value": "2011-07-15T15:00",
          "label": "15 Jul 15:00"
        },
        {
          "value": "2011-07-15T19:00",
          "label": "15 Jul 19:00"
        }
      ],
      "annotations": [
        "12 Jul 2011"
      ]
    }
  ]
}
